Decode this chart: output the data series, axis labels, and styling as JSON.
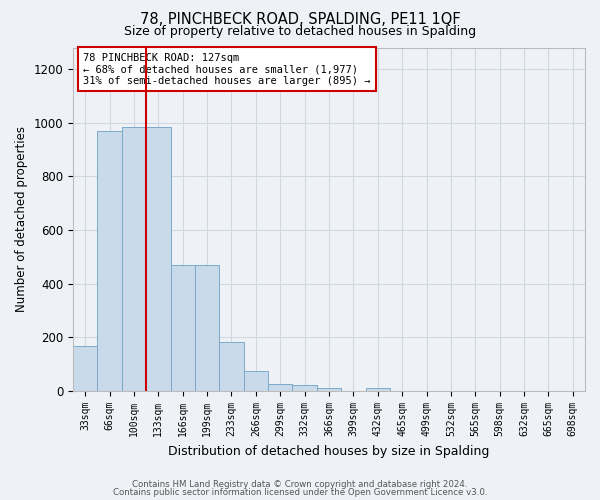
{
  "title": "78, PINCHBECK ROAD, SPALDING, PE11 1QF",
  "subtitle": "Size of property relative to detached houses in Spalding",
  "xlabel": "Distribution of detached houses by size in Spalding",
  "ylabel": "Number of detached properties",
  "footer_line1": "Contains HM Land Registry data © Crown copyright and database right 2024.",
  "footer_line2": "Contains public sector information licensed under the Open Government Licence v3.0.",
  "bar_color": "#c9daea",
  "bar_edge_color": "#7aaac8",
  "grid_color": "#d0d8e0",
  "background_color": "#eef2f6",
  "annotation_box_color": "#ffffff",
  "annotation_border_color": "#cc0000",
  "vline_color": "#cc0000",
  "bins": [
    "33sqm",
    "66sqm",
    "100sqm",
    "133sqm",
    "166sqm",
    "199sqm",
    "233sqm",
    "266sqm",
    "299sqm",
    "332sqm",
    "366sqm",
    "399sqm",
    "432sqm",
    "465sqm",
    "499sqm",
    "532sqm",
    "565sqm",
    "598sqm",
    "632sqm",
    "665sqm",
    "698sqm"
  ],
  "values": [
    170,
    970,
    985,
    985,
    470,
    470,
    185,
    75,
    28,
    22,
    12,
    0,
    12,
    0,
    0,
    0,
    0,
    0,
    0,
    0,
    0
  ],
  "vline_bin_index": 3,
  "annotation_text_line1": "78 PINCHBECK ROAD: 127sqm",
  "annotation_text_line2": "← 68% of detached houses are smaller (1,977)",
  "annotation_text_line3": "31% of semi-detached houses are larger (895) →",
  "ylim": [
    0,
    1280
  ],
  "yticks": [
    0,
    200,
    400,
    600,
    800,
    1000,
    1200
  ]
}
